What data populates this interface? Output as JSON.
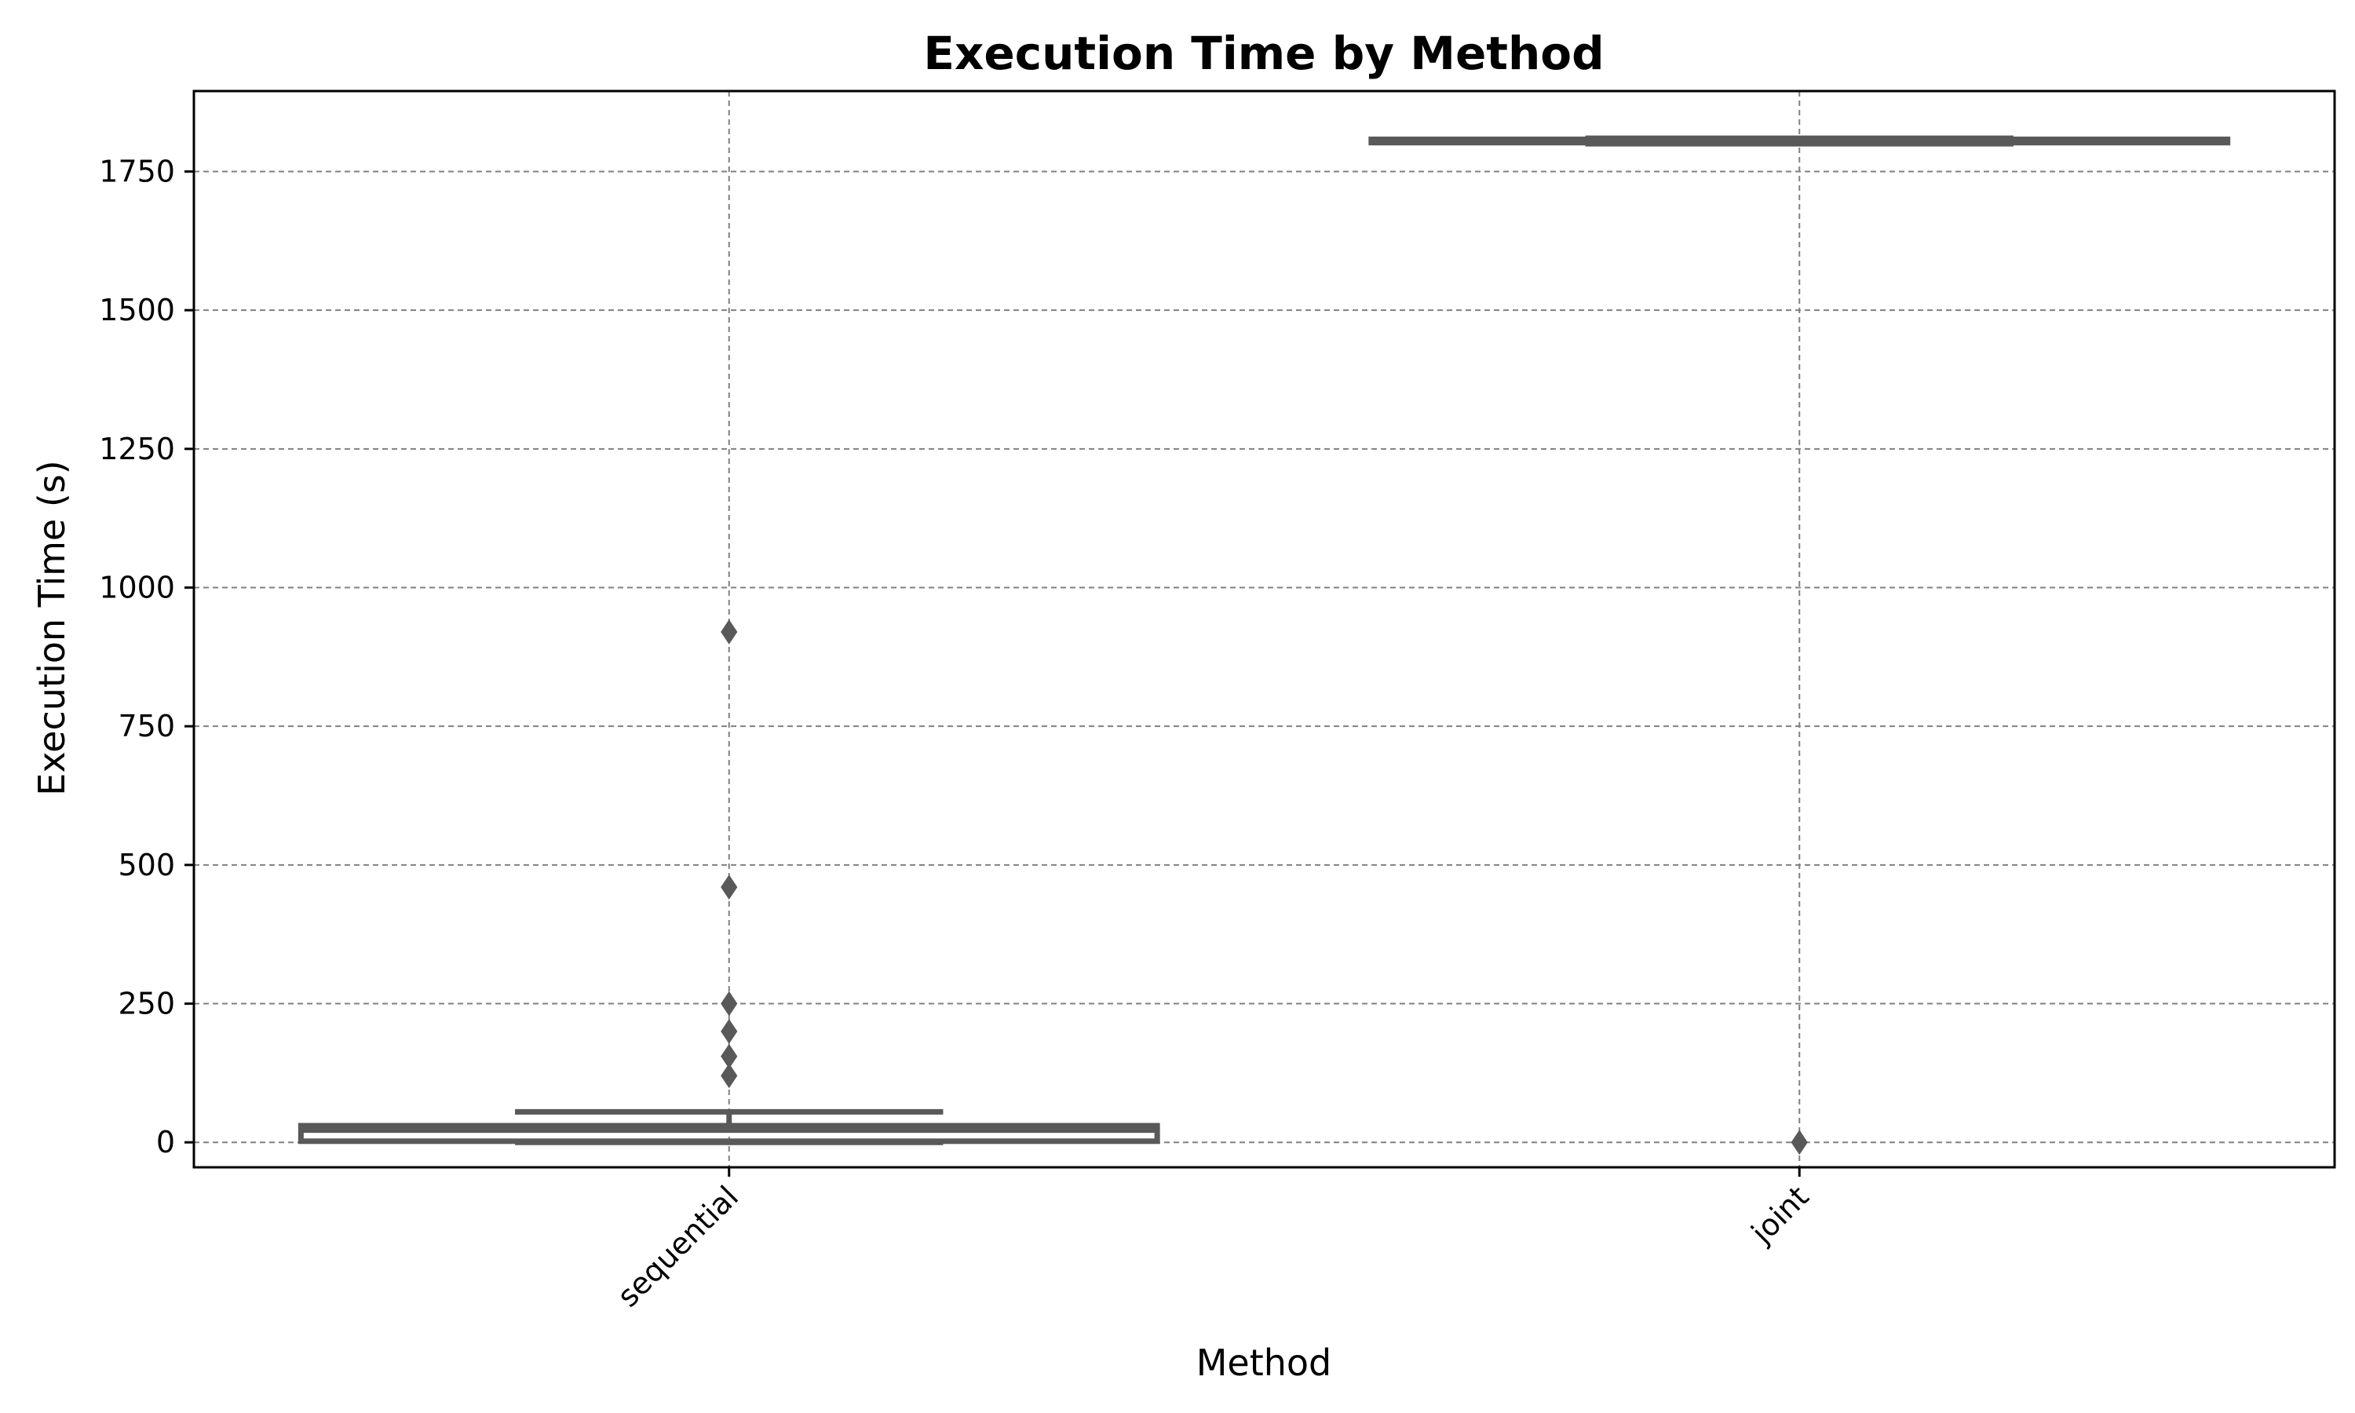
{
  "chart_data": {
    "type": "boxplot",
    "title": "Execution Time by Method",
    "xlabel": "Method",
    "ylabel": "Execution Time (s)",
    "categories": [
      "sequential",
      "joint"
    ],
    "ylim": [
      -45,
      1895
    ],
    "yticks": [
      0,
      250,
      500,
      750,
      1000,
      1250,
      1500,
      1750
    ],
    "grid": true,
    "xtick_rotation": 45,
    "box_color": "#595959",
    "grid_color": "#808080",
    "boxes": [
      {
        "category": "sequential",
        "whisker_low": 0,
        "q1": 2,
        "median": 22,
        "q3": 30,
        "whisker_high": 55,
        "outliers": [
          120,
          155,
          200,
          250,
          460,
          920
        ]
      },
      {
        "category": "joint",
        "whisker_low": 1800,
        "q1": 1802,
        "median": 1805,
        "q3": 1808,
        "whisker_high": 1810,
        "outliers": [
          0
        ]
      }
    ]
  }
}
